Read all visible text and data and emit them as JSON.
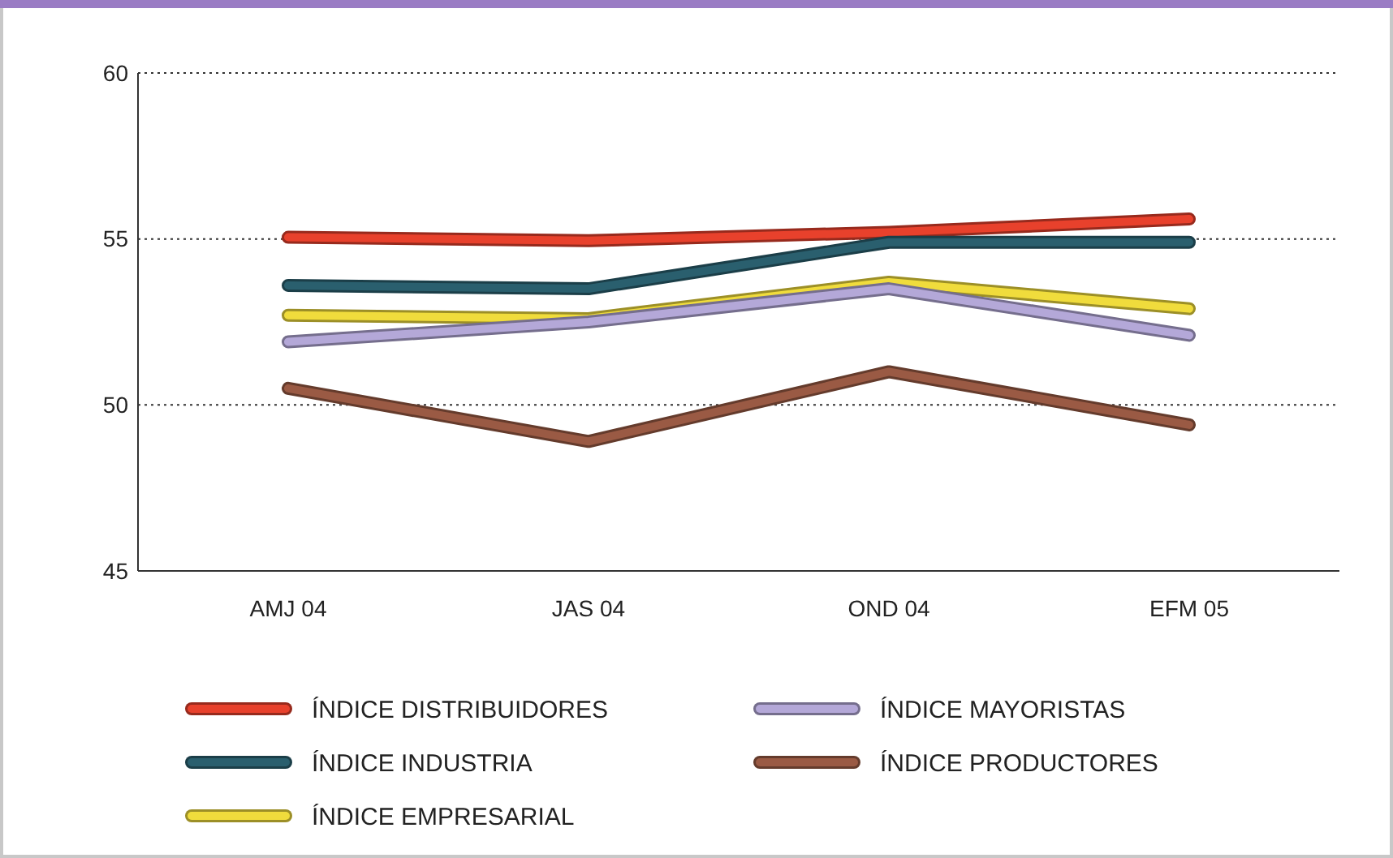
{
  "chart_data": {
    "type": "line",
    "categories": [
      "AMJ 04",
      "JAS 04",
      "OND 04",
      "EFM 05"
    ],
    "series": [
      {
        "name": "ÍNDICE DISTRIBUIDORES",
        "color": "#e8412c",
        "values": [
          55.05,
          54.95,
          55.2,
          55.6
        ]
      },
      {
        "name": "ÍNDICE INDUSTRIA",
        "color": "#2a5f6e",
        "values": [
          53.6,
          53.5,
          54.9,
          54.9
        ]
      },
      {
        "name": "ÍNDICE EMPRESARIAL",
        "color": "#f0dc3c",
        "values": [
          52.7,
          52.6,
          53.7,
          52.9
        ]
      },
      {
        "name": "ÍNDICE MAYORISTAS",
        "color": "#b4a8d8",
        "values": [
          51.9,
          52.5,
          53.5,
          52.1
        ]
      },
      {
        "name": "ÍNDICE PRODUCTORES",
        "color": "#9a5a44",
        "values": [
          50.5,
          48.9,
          51.0,
          49.4
        ]
      }
    ],
    "ylim": [
      45,
      60
    ],
    "yticks": [
      45,
      50,
      55,
      60
    ],
    "grid": "y",
    "legend": "bottom",
    "marker": "none",
    "line_style": "solid"
  }
}
